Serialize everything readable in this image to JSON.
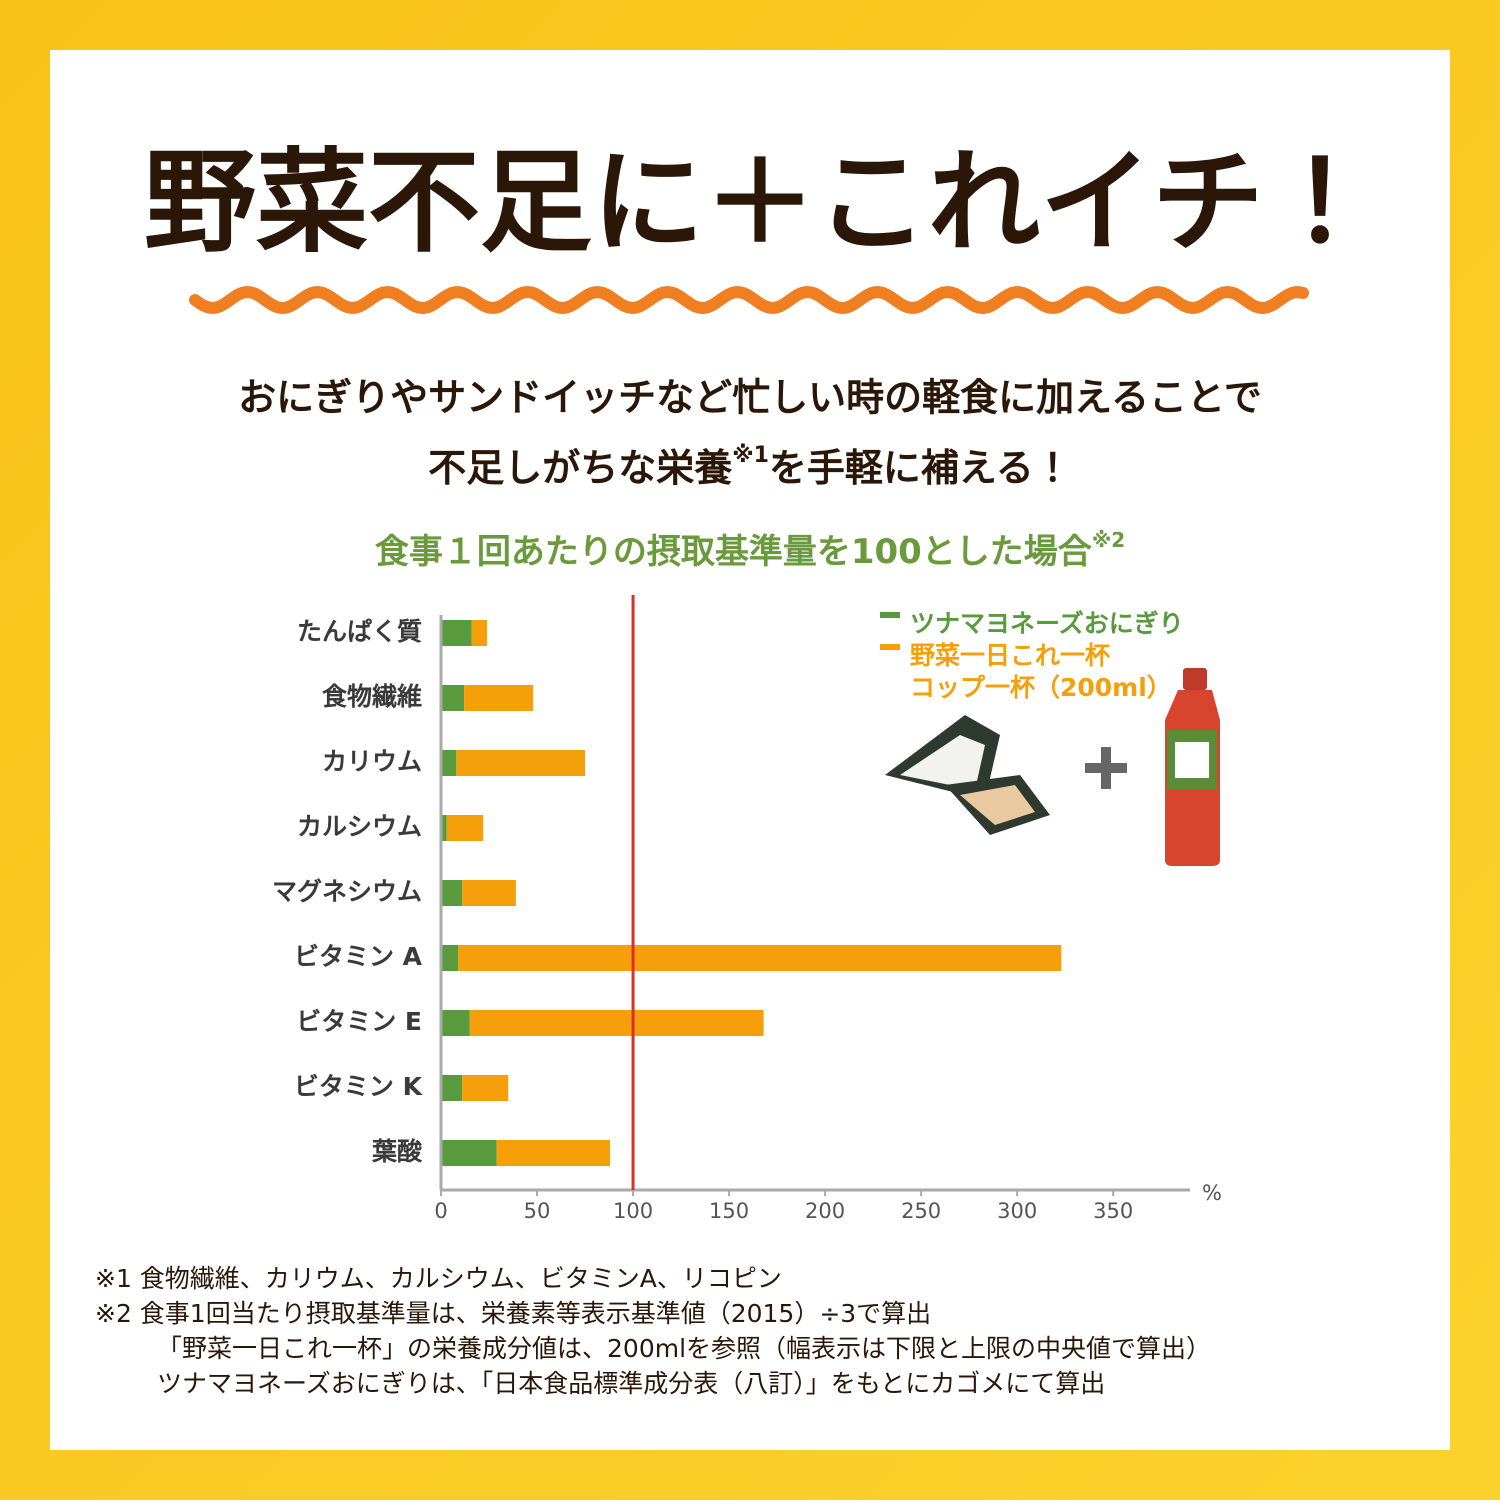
{
  "header": {
    "title": "野菜不足に＋これイチ！",
    "lead": [
      "おにぎりやサンドイッチなど忙しい時の軽食に加えることで",
      "不足しがちな栄養",
      "※1",
      "を手軽に補える！"
    ]
  },
  "chart_data": {
    "type": "stacked-barh",
    "title": "食事１回あたりの摂取基準量を100とした場合",
    "title_note": "※2",
    "categories": [
      "たんぱく質",
      "食物繊維",
      "カリウム",
      "カルシウム",
      "マグネシウム",
      "ビタミン A",
      "ビタミン E",
      "ビタミン K",
      "葉酸"
    ],
    "series": [
      {
        "name": "ツナマヨネーズおにぎり",
        "color": "#5a9a3e",
        "values": [
          16,
          12,
          8,
          3,
          11,
          9,
          15,
          11,
          29
        ]
      },
      {
        "name": "野菜一日これ一杯\nコップ一杯（200ml）",
        "color": "#f5a00a",
        "values": [
          8,
          36,
          67,
          19,
          28,
          314,
          153,
          24,
          59
        ]
      }
    ],
    "xlim": [
      0,
      390
    ],
    "xticks": [
      0,
      50,
      100,
      150,
      200,
      250,
      300,
      350
    ],
    "x_unit": "%",
    "reference_line": 100,
    "reference_color": "#d9302a"
  },
  "footnotes": [
    "※1 食物繊維、カリウム、カルシウム、ビタミンA、リコピン",
    "※2 食事1回当たり摂取基準量は、栄養素等表示基準値（2015）÷3で算出",
    "「野菜一日これ一杯」の栄養成分値は、200mlを参照（幅表示は下限と上限の中央値で算出）",
    "ツナマヨネーズおにぎりは、「日本食品標準成分表（八訂）」をもとにカゴメにて算出"
  ]
}
